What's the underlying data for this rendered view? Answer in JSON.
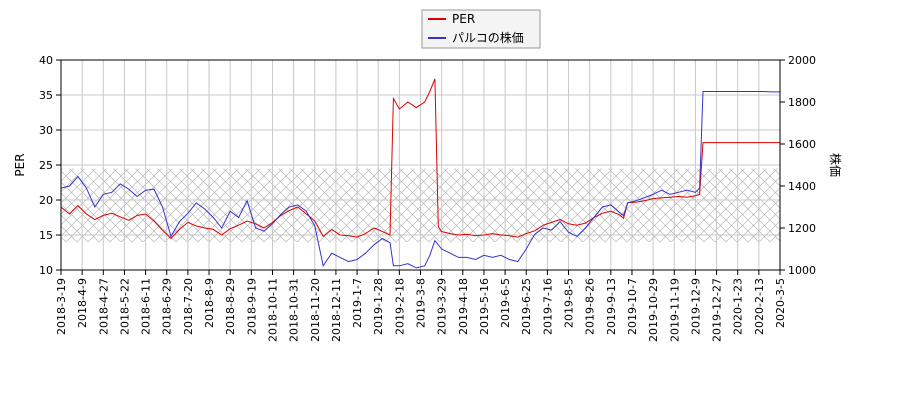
{
  "chart_data": {
    "type": "line",
    "title": "",
    "legend": {
      "placement": "top-center",
      "entries": [
        {
          "name": "PER",
          "color": "#dd0000"
        },
        {
          "name": "パルコの株価",
          "color": "#3333cc"
        }
      ]
    },
    "ylabel_left": "PER",
    "ylabel_right": "株価",
    "ylim_left": [
      10,
      40
    ],
    "ylim_right": [
      1000,
      2000
    ],
    "yticks_left": [
      "10",
      "15",
      "20",
      "25",
      "30",
      "35",
      "40"
    ],
    "yticks_right": [
      "1000",
      "1200",
      "1400",
      "1600",
      "1800",
      "2000"
    ],
    "xticks": [
      "2018-3-19",
      "2018-4-9",
      "2018-4-27",
      "2018-5-22",
      "2018-6-11",
      "2018-6-29",
      "2018-7-20",
      "2018-8-9",
      "2018-8-29",
      "2018-9-19",
      "2018-10-11",
      "2018-10-31",
      "2018-11-20",
      "2018-12-11",
      "2019-1-7",
      "2019-1-28",
      "2019-2-18",
      "2019-3-8",
      "2019-3-29",
      "2019-4-18",
      "2019-5-16",
      "2019-6-5",
      "2019-6-25",
      "2019-7-16",
      "2019-8-5",
      "2019-8-26",
      "2019-9-13",
      "2019-10-7",
      "2019-10-29",
      "2019-11-19",
      "2019-12-9",
      "2019-12-27",
      "2020-1-23",
      "2020-2-13",
      "2020-3-5"
    ],
    "grid": true,
    "reference_band_left": [
      14,
      24.5
    ],
    "series": [
      {
        "name": "PER",
        "axis": "left",
        "color": "#dd0000",
        "points": [
          [
            0,
            19
          ],
          [
            1,
            18
          ],
          [
            2,
            19.2
          ],
          [
            3,
            18
          ],
          [
            4,
            17.2
          ],
          [
            5,
            17.8
          ],
          [
            6,
            18.1
          ],
          [
            7,
            17.6
          ],
          [
            8,
            17.1
          ],
          [
            9,
            17.8
          ],
          [
            10,
            18
          ],
          [
            11,
            17
          ],
          [
            12,
            15.7
          ],
          [
            13,
            14.5
          ],
          [
            14,
            15.8
          ],
          [
            15,
            16.8
          ],
          [
            16,
            16.3
          ],
          [
            17,
            16
          ],
          [
            18,
            15.8
          ],
          [
            19,
            15
          ],
          [
            20,
            15.9
          ],
          [
            21,
            16.4
          ],
          [
            22,
            17
          ],
          [
            23,
            16.6
          ],
          [
            24,
            16
          ],
          [
            25,
            16.8
          ],
          [
            26,
            17.8
          ],
          [
            27,
            18.5
          ],
          [
            28,
            19
          ],
          [
            29,
            18
          ],
          [
            30,
            17
          ],
          [
            31,
            14.8
          ],
          [
            32,
            15.8
          ],
          [
            33,
            15
          ],
          [
            34,
            14.9
          ],
          [
            35,
            14.7
          ],
          [
            36,
            15.2
          ],
          [
            37,
            16
          ],
          [
            38,
            15.5
          ],
          [
            38.9,
            15
          ],
          [
            39.3,
            34.5
          ],
          [
            40,
            33
          ],
          [
            41,
            34
          ],
          [
            42,
            33.2
          ],
          [
            43,
            34
          ],
          [
            43.6,
            35.5
          ],
          [
            44.2,
            37.3
          ],
          [
            44.6,
            16.2
          ],
          [
            45,
            15.5
          ],
          [
            46,
            15.2
          ],
          [
            47,
            15
          ],
          [
            48,
            15.1
          ],
          [
            49,
            14.9
          ],
          [
            50,
            15
          ],
          [
            51,
            15.2
          ],
          [
            52,
            15
          ],
          [
            53,
            14.9
          ],
          [
            54,
            14.7
          ],
          [
            55,
            15.2
          ],
          [
            56,
            15.6
          ],
          [
            57,
            16.4
          ],
          [
            58,
            16.8
          ],
          [
            59,
            17.2
          ],
          [
            60,
            16.6
          ],
          [
            61,
            16.4
          ],
          [
            62,
            16.7
          ],
          [
            63,
            17.5
          ],
          [
            64,
            18.1
          ],
          [
            65,
            18.4
          ],
          [
            66,
            17.9
          ],
          [
            66.5,
            17.4
          ],
          [
            67,
            19.6
          ],
          [
            68,
            19.7
          ],
          [
            69,
            19.9
          ],
          [
            70,
            20.2
          ],
          [
            71,
            20.3
          ],
          [
            72,
            20.4
          ],
          [
            73,
            20.5
          ],
          [
            74,
            20.4
          ],
          [
            75,
            20.6
          ],
          [
            75.5,
            20.8
          ],
          [
            75.9,
            28.2
          ],
          [
            77,
            28.2
          ],
          [
            78,
            28.2
          ],
          [
            79,
            28.2
          ],
          [
            80,
            28.2
          ],
          [
            81,
            28.2
          ],
          [
            82,
            28.2
          ],
          [
            83,
            28.2
          ],
          [
            84,
            28.2
          ],
          [
            85,
            28.2
          ]
        ]
      },
      {
        "name": "パルコの株価",
        "axis": "right",
        "color": "#3333cc",
        "points": [
          [
            0,
            1390
          ],
          [
            1,
            1400
          ],
          [
            2,
            1445
          ],
          [
            3,
            1390
          ],
          [
            4,
            1300
          ],
          [
            5,
            1360
          ],
          [
            6,
            1370
          ],
          [
            7,
            1410
          ],
          [
            8,
            1385
          ],
          [
            9,
            1350
          ],
          [
            10,
            1380
          ],
          [
            11,
            1385
          ],
          [
            12,
            1300
          ],
          [
            13,
            1160
          ],
          [
            14,
            1230
          ],
          [
            15,
            1270
          ],
          [
            16,
            1320
          ],
          [
            17,
            1290
          ],
          [
            18,
            1250
          ],
          [
            19,
            1200
          ],
          [
            20,
            1280
          ],
          [
            21,
            1250
          ],
          [
            22,
            1330
          ],
          [
            23,
            1200
          ],
          [
            24,
            1185
          ],
          [
            25,
            1220
          ],
          [
            26,
            1265
          ],
          [
            27,
            1300
          ],
          [
            28,
            1310
          ],
          [
            29,
            1280
          ],
          [
            30,
            1210
          ],
          [
            31,
            1020
          ],
          [
            32,
            1080
          ],
          [
            33,
            1060
          ],
          [
            34,
            1040
          ],
          [
            35,
            1050
          ],
          [
            36,
            1080
          ],
          [
            37,
            1120
          ],
          [
            38,
            1150
          ],
          [
            38.9,
            1130
          ],
          [
            39.3,
            1020
          ],
          [
            40,
            1020
          ],
          [
            41,
            1030
          ],
          [
            42,
            1010
          ],
          [
            43,
            1020
          ],
          [
            43.6,
            1070
          ],
          [
            44.2,
            1140
          ],
          [
            44.6,
            1120
          ],
          [
            45,
            1100
          ],
          [
            46,
            1080
          ],
          [
            47,
            1060
          ],
          [
            48,
            1060
          ],
          [
            49,
            1050
          ],
          [
            50,
            1070
          ],
          [
            51,
            1060
          ],
          [
            52,
            1070
          ],
          [
            53,
            1050
          ],
          [
            54,
            1040
          ],
          [
            55,
            1100
          ],
          [
            56,
            1170
          ],
          [
            57,
            1200
          ],
          [
            58,
            1190
          ],
          [
            59,
            1230
          ],
          [
            60,
            1180
          ],
          [
            61,
            1160
          ],
          [
            62,
            1200
          ],
          [
            63,
            1250
          ],
          [
            64,
            1300
          ],
          [
            65,
            1310
          ],
          [
            66,
            1275
          ],
          [
            66.5,
            1260
          ],
          [
            67,
            1320
          ],
          [
            68,
            1330
          ],
          [
            69,
            1345
          ],
          [
            70,
            1360
          ],
          [
            71,
            1380
          ],
          [
            72,
            1360
          ],
          [
            73,
            1370
          ],
          [
            74,
            1380
          ],
          [
            75,
            1370
          ],
          [
            75.5,
            1390
          ],
          [
            75.9,
            1850
          ],
          [
            77,
            1850
          ],
          [
            78,
            1850
          ],
          [
            79,
            1850
          ],
          [
            80,
            1850
          ],
          [
            81,
            1850
          ],
          [
            82,
            1850
          ],
          [
            83,
            1850
          ],
          [
            84,
            1848
          ],
          [
            85,
            1848
          ]
        ]
      }
    ]
  }
}
